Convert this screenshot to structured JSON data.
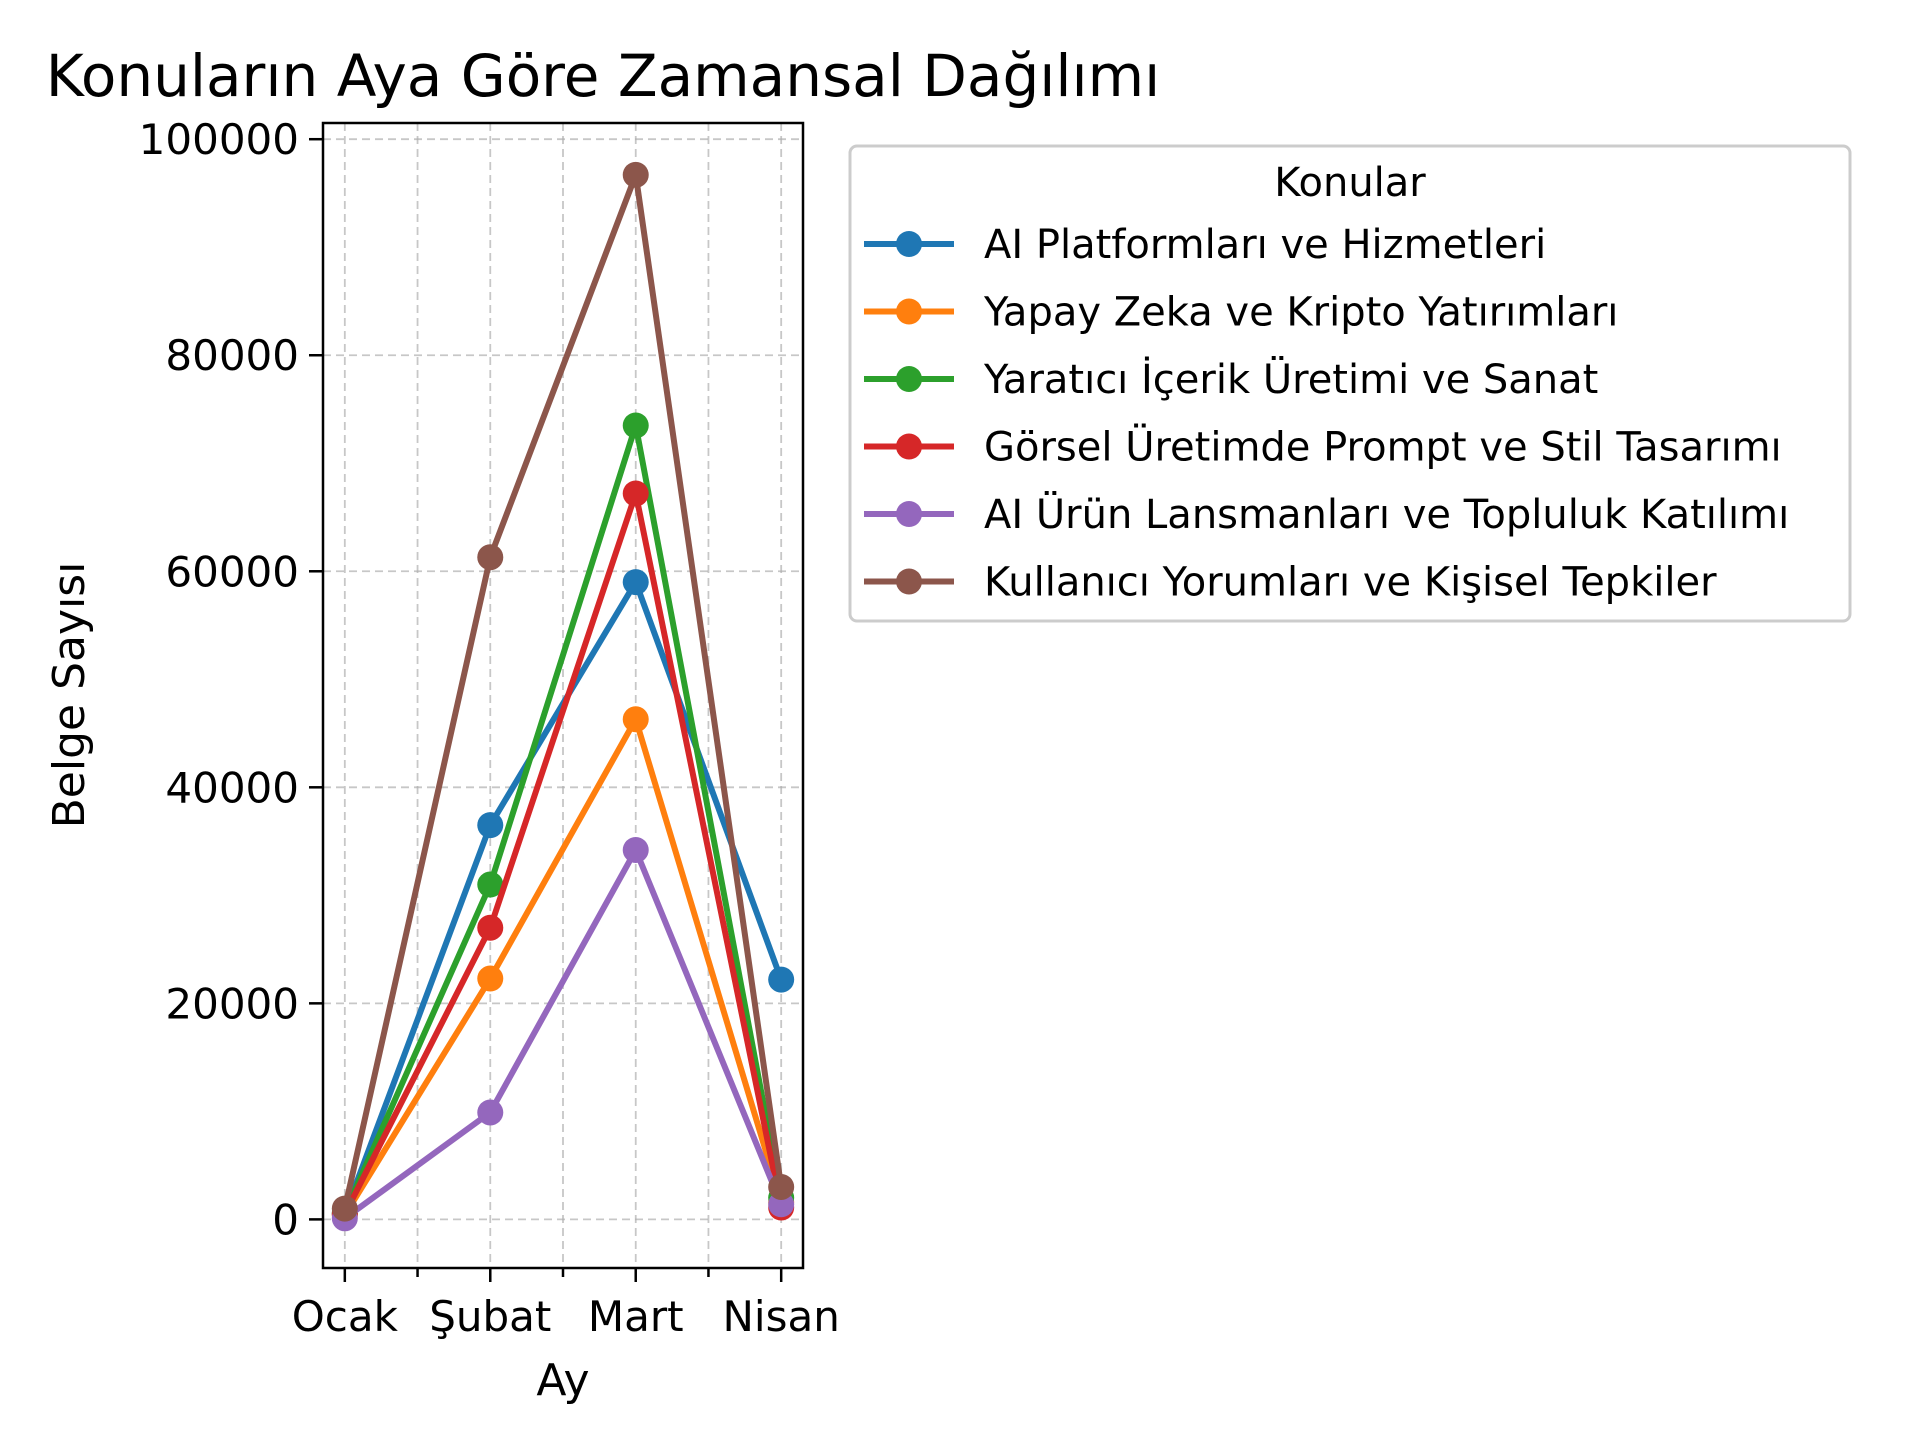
{
  "chart_data": {
    "type": "line",
    "title": "Konuların Aya Göre Zamansal Dağılımı",
    "xlabel": "Ay",
    "ylabel": "Belge Sayısı",
    "categories": [
      "Ocak",
      "Şubat",
      "Mart",
      "Nisan"
    ],
    "ylim": [
      -4500,
      101500
    ],
    "yticks": [
      0,
      20000,
      40000,
      60000,
      80000,
      100000
    ],
    "grid": true,
    "legend_title": "Konular",
    "legend_position": "outside-right-top",
    "series": [
      {
        "name": "AI Platformları ve Hizmetleri",
        "color": "#1f77b4",
        "values": [
          500,
          36500,
          59000,
          22200
        ]
      },
      {
        "name": "Yapay Zeka ve Kripto Yatırımları",
        "color": "#ff7f0e",
        "values": [
          400,
          22300,
          46300,
          1600
        ]
      },
      {
        "name": "Yaratıcı İçerik Üretimi ve Sanat",
        "color": "#2ca02c",
        "values": [
          600,
          31000,
          73500,
          2000
        ]
      },
      {
        "name": "Görsel Üretimde Prompt ve Stil Tasarımı",
        "color": "#d62728",
        "values": [
          500,
          27000,
          67200,
          1100
        ]
      },
      {
        "name": "AI Ürün Lansmanları ve Topluluk Katılımı",
        "color": "#9467bd",
        "values": [
          100,
          9900,
          34200,
          1400
        ]
      },
      {
        "name": "Kullanıcı Yorumları ve Kişisel Tepkiler",
        "color": "#8c564b",
        "values": [
          1000,
          61300,
          96700,
          3000
        ]
      }
    ]
  }
}
